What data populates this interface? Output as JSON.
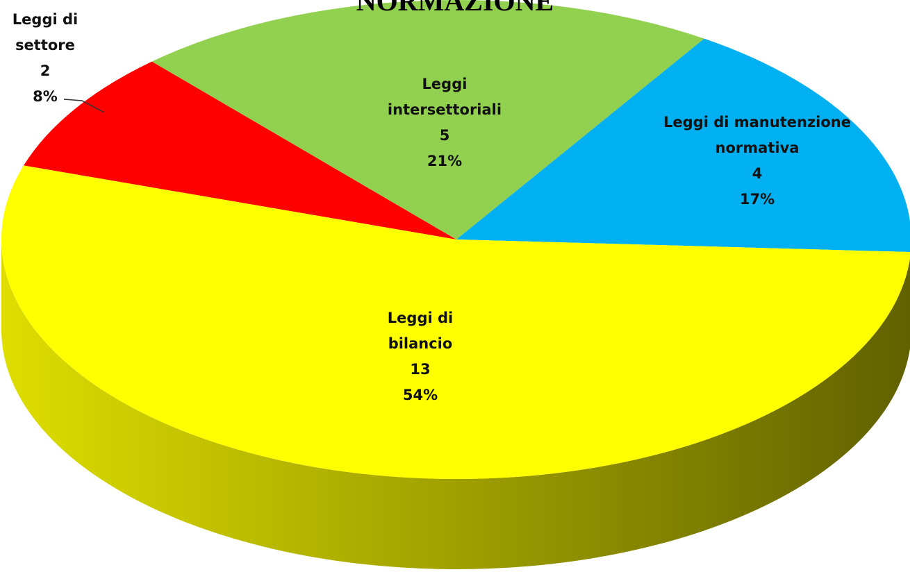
{
  "chart_data": {
    "type": "pie",
    "title": "NORMAZIONE",
    "categories": [
      "Leggi di settore",
      "Leggi intersettoriali",
      "Leggi di manutenzione normativa",
      "Leggi di bilancio"
    ],
    "values": [
      2,
      5,
      4,
      13
    ],
    "percentages": [
      8,
      21,
      17,
      54
    ],
    "value_labels": [
      "8%",
      "21%",
      "17%",
      "54%"
    ],
    "colors": [
      "#ff0000",
      "#92d050",
      "#00b0f0",
      "#ffff00"
    ]
  }
}
